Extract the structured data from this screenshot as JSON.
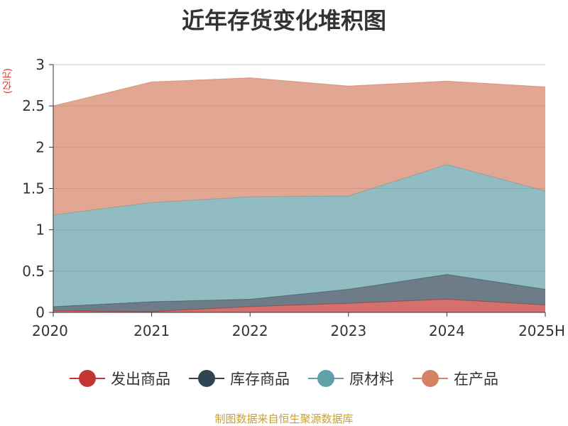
{
  "chart_data": {
    "type": "area",
    "stacked": true,
    "title": "近年存货变化堆积图",
    "ylabel": "(亿元)",
    "categories": [
      "2020",
      "2021",
      "2022",
      "2023",
      "2024",
      "2025H"
    ],
    "ylim": [
      0,
      3
    ],
    "yticks": [
      "0",
      "0.5",
      "1",
      "1.5",
      "2",
      "2.5",
      "3"
    ],
    "grid": true,
    "legend_position": "bottom",
    "series": [
      {
        "name": "发出商品",
        "color": "#c23531",
        "values": [
          0.02,
          0.01,
          0.07,
          0.11,
          0.16,
          0.09
        ]
      },
      {
        "name": "库存商品",
        "color": "#2f4554",
        "values": [
          0.05,
          0.12,
          0.09,
          0.17,
          0.3,
          0.19
        ]
      },
      {
        "name": "原材料",
        "color": "#61a0a8",
        "values": [
          1.11,
          1.2,
          1.24,
          1.13,
          1.33,
          1.19
        ]
      },
      {
        "name": "在产品",
        "color": "#d48265",
        "values": [
          1.32,
          1.46,
          1.44,
          1.33,
          1.01,
          1.26
        ]
      }
    ]
  },
  "source_note": "制图数据来自恒生聚源数据库"
}
